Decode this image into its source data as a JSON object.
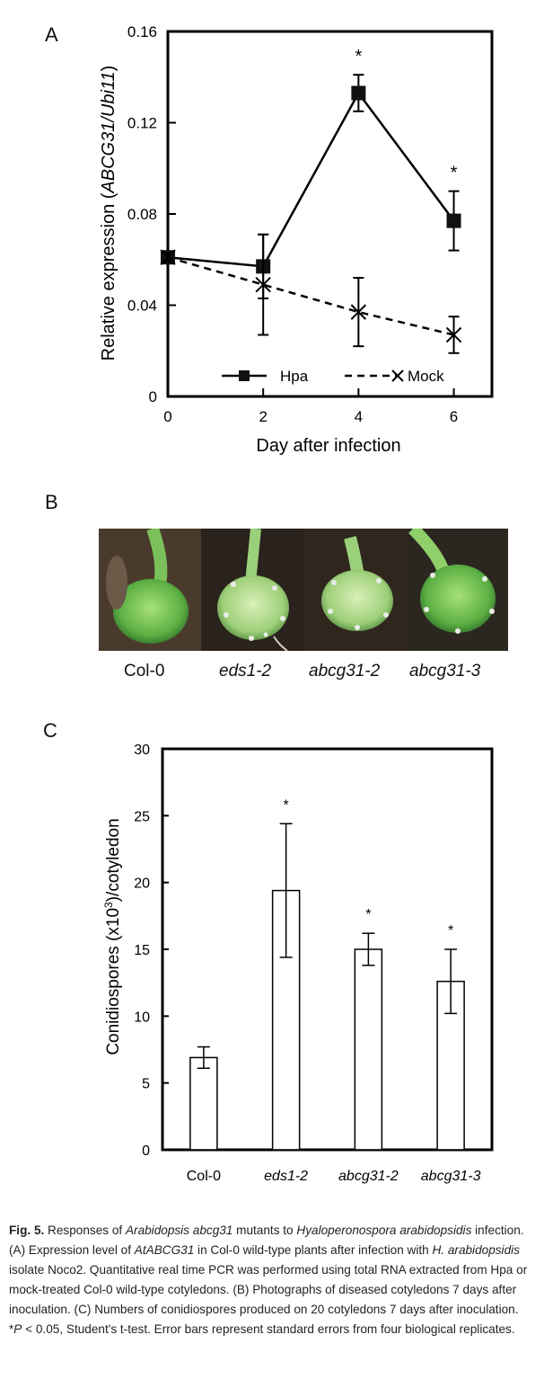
{
  "panels": {
    "a": "A",
    "b": "B",
    "c": "C"
  },
  "chart_data": [
    {
      "type": "line",
      "panel": "A",
      "xlabel": "Day after infection",
      "ylabel_prefix": "Relative expression (",
      "ylabel_italic": "ABCG31/Ubi11",
      "ylabel_suffix": ")",
      "x": [
        0,
        2,
        4,
        6
      ],
      "xlim": [
        0,
        6.8
      ],
      "ylim": [
        0,
        0.16
      ],
      "yticks": [
        "0",
        "0.04",
        "0.08",
        "0.12",
        "0.16"
      ],
      "ytick_values": [
        0,
        0.04,
        0.08,
        0.12,
        0.16
      ],
      "xticks": [
        "0",
        "2",
        "4",
        "6"
      ],
      "series": [
        {
          "name": "Hpa",
          "values": [
            0.061,
            0.057,
            0.133,
            0.077
          ],
          "errors": [
            0.002,
            0.014,
            0.008,
            0.013
          ],
          "marker": "square",
          "line": "solid",
          "significant": [
            false,
            false,
            true,
            true
          ]
        },
        {
          "name": "Mock",
          "values": [
            0.061,
            0.049,
            0.037,
            0.027
          ],
          "errors": [
            0.002,
            0.022,
            0.015,
            0.008
          ],
          "marker": "x",
          "line": "dashed"
        }
      ],
      "significance_symbol": "*",
      "legend_position": "bottom-center",
      "grid": false
    },
    {
      "type": "bar",
      "panel": "C",
      "categories": [
        "Col-0",
        "eds1-2",
        "abcg31-2",
        "abcg31-3"
      ],
      "values": [
        6.9,
        19.4,
        15.0,
        12.6
      ],
      "errors": [
        0.8,
        5.0,
        1.2,
        2.4
      ],
      "significant": [
        false,
        true,
        true,
        true
      ],
      "significance_symbol": "*",
      "ylabel_prefix": "Conidiospores (x10",
      "ylabel_sup": "3",
      "ylabel_suffix": ")/cotyledon",
      "ylim": [
        0,
        30
      ],
      "yticks": [
        "0",
        "5",
        "10",
        "15",
        "20",
        "25",
        "30"
      ],
      "ytick_values": [
        0,
        5,
        10,
        15,
        20,
        25,
        30
      ],
      "grid": false
    }
  ],
  "photos": {
    "labels": [
      "Col-0",
      "eds1-2",
      "abcg31-2",
      "abcg31-3"
    ]
  },
  "caption": {
    "fig": "Fig. 5.",
    "t1": " Responses of ",
    "i1": "Arabidopsis abcg31",
    "t2": " mutants to ",
    "i2": "Hyaloperonospora arabidopsidis",
    "t3": " infection. (A) Expression level of ",
    "i3": "AtABCG31",
    "t4": " in Col-0 wild-type plants after infection with ",
    "i4": "H. arabidopsidis",
    "t5": " isolate Noco2. Quantitative real time PCR was performed using total RNA extracted from Hpa or mock-treated Col-0 wild-type cotyledons. (B) Photographs of diseased cotyledons 7 days after inoculation. (C) Numbers of conidiospores produced on 20 cotyledons 7 days after inoculation. *",
    "i5": "P",
    "t6": " < 0.05, Student's t-test. Error bars represent standard errors from four biological replicates."
  }
}
